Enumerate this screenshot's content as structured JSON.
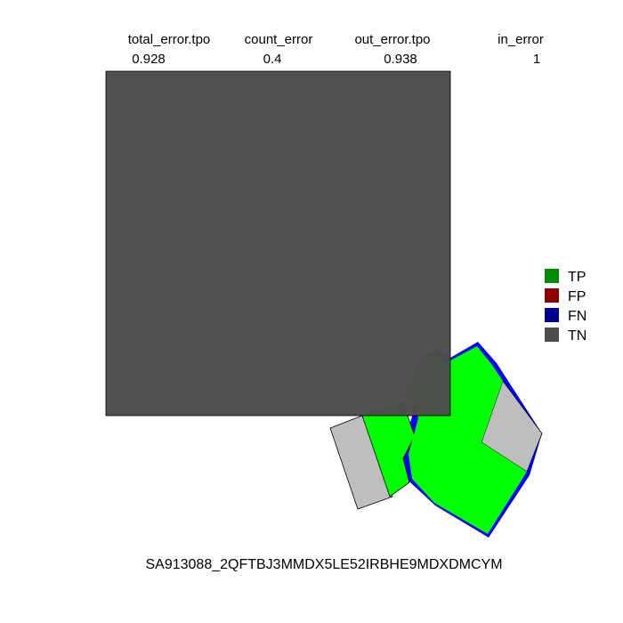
{
  "chart_data": {
    "type": "map",
    "title": "",
    "metrics": [
      {
        "name": "total_error.tpo",
        "value": "0.928"
      },
      {
        "name": "count_error",
        "value": "0.4"
      },
      {
        "name": "out_error.tpo",
        "value": "0.938"
      },
      {
        "name": "in_error",
        "value": "1"
      }
    ],
    "legend": [
      {
        "label": "TP",
        "color": "#008b00"
      },
      {
        "label": "FP",
        "color": "#8b0000"
      },
      {
        "label": "FN",
        "color": "#00008b"
      },
      {
        "label": "TN",
        "color": "#4d4d4d"
      }
    ],
    "caption": "SA913088_2QFTBJ3MMDX5LE52IRBHE9MDXDMCYM",
    "colors": {
      "tp_fill": "#00ff00",
      "fn_edge": "#0000ff",
      "tn_fill": "#bebebe",
      "overlay": "#4d4d4d"
    }
  }
}
